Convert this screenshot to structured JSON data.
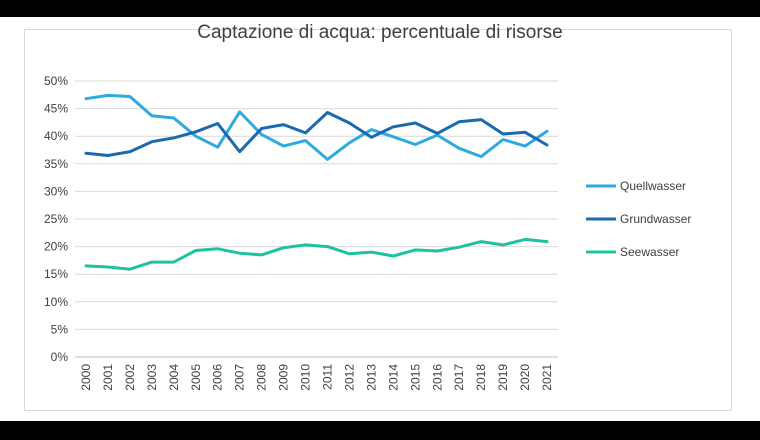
{
  "chart_data": {
    "type": "line",
    "title": "Captazione di acqua: percentuale di risorse",
    "xlabel": "",
    "ylabel": "",
    "ylim": [
      0,
      50
    ],
    "y_ticks": [
      "0%",
      "5%",
      "10%",
      "15%",
      "20%",
      "25%",
      "30%",
      "35%",
      "40%",
      "45%",
      "50%"
    ],
    "grid": true,
    "legend_position": "right",
    "categories": [
      "2000",
      "2001",
      "2002",
      "2003",
      "2004",
      "2005",
      "2006",
      "2007",
      "2008",
      "2009",
      "2010",
      "2011",
      "2012",
      "2013",
      "2014",
      "2015",
      "2016",
      "2017",
      "2018",
      "2019",
      "2020",
      "2021"
    ],
    "series": [
      {
        "name": "Quellwasser",
        "color": "#2eaadc",
        "values": [
          46.8,
          47.4,
          47.2,
          43.7,
          43.3,
          40.0,
          38.0,
          44.4,
          40.3,
          38.2,
          39.2,
          35.8,
          38.8,
          41.2,
          39.9,
          38.5,
          40.2,
          37.8,
          36.3,
          39.4,
          38.2,
          40.9
        ]
      },
      {
        "name": "Grundwasser",
        "color": "#1a6aad",
        "values": [
          36.9,
          36.5,
          37.2,
          39.0,
          39.7,
          40.8,
          42.3,
          37.2,
          41.4,
          42.1,
          40.6,
          44.3,
          42.4,
          39.8,
          41.7,
          42.4,
          40.5,
          42.6,
          43.0,
          40.4,
          40.7,
          38.4
        ]
      },
      {
        "name": "Seewasser",
        "color": "#1ec29f",
        "values": [
          16.5,
          16.3,
          15.9,
          17.2,
          17.2,
          19.3,
          19.6,
          18.8,
          18.5,
          19.8,
          20.3,
          20.0,
          18.7,
          19.0,
          18.3,
          19.4,
          19.2,
          19.9,
          20.9,
          20.3,
          21.3,
          20.9
        ]
      }
    ]
  }
}
